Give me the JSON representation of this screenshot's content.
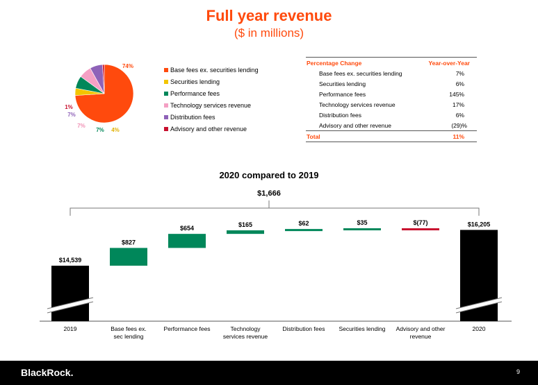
{
  "title": "Full year revenue",
  "subtitle": "($ in millions)",
  "colors": {
    "accent": "#ff4a0d",
    "green": "#00875a",
    "red": "#c8102e",
    "black": "#000000"
  },
  "chart_data": [
    {
      "type": "pie",
      "title": "",
      "slices": [
        {
          "label": "Base fees ex. securities lending",
          "value": 74,
          "label_text": "74%",
          "color": "#ff4a0d"
        },
        {
          "label": "Securities lending",
          "value": 4,
          "label_text": "4%",
          "color": "#f2c500"
        },
        {
          "label": "Performance fees",
          "value": 7,
          "label_text": "7%",
          "color": "#00875a"
        },
        {
          "label": "Technology services revenue",
          "value": 7,
          "label_text": "7%",
          "color": "#f4a0c4"
        },
        {
          "label": "Distribution fees",
          "value": 7,
          "label_text": "7%",
          "color": "#8e62b8"
        },
        {
          "label": "Advisory and other revenue",
          "value": 1,
          "label_text": "1%",
          "color": "#c8102e"
        }
      ]
    },
    {
      "type": "table",
      "title": "Percentage Change",
      "columns": [
        "Percentage Change",
        "Year-over-Year"
      ],
      "rows": [
        {
          "label": "Base fees ex. securities lending",
          "value": "7%"
        },
        {
          "label": "Securities lending",
          "value": "6%"
        },
        {
          "label": "Performance fees",
          "value": "145%"
        },
        {
          "label": "Technology services revenue",
          "value": "17%"
        },
        {
          "label": "Distribution fees",
          "value": "6%"
        },
        {
          "label": "Advisory and other revenue",
          "value": "(29)%"
        }
      ],
      "total": {
        "label": "Total",
        "value": "11%"
      }
    },
    {
      "type": "bar",
      "subtype": "waterfall",
      "title": "2020 compared to 2019",
      "total_change_label": "$1,666",
      "categories": [
        "2019",
        "Base fees ex. sec lending",
        "Performance fees",
        "Technology services revenue",
        "Distribution fees",
        "Securities lending",
        "Advisory and other revenue",
        "2020"
      ],
      "values": [
        14539,
        827,
        654,
        165,
        62,
        35,
        -77,
        16205
      ],
      "labels": [
        "$14,539",
        "$827",
        "$654",
        "$165",
        "$62",
        "$35",
        "$(77)",
        "$16,205"
      ],
      "kinds": [
        "total",
        "delta",
        "delta",
        "delta",
        "delta",
        "delta",
        "delta",
        "total"
      ],
      "axis_break": true
    }
  ],
  "footer": {
    "logo": "BlackRock.",
    "page": "9"
  }
}
